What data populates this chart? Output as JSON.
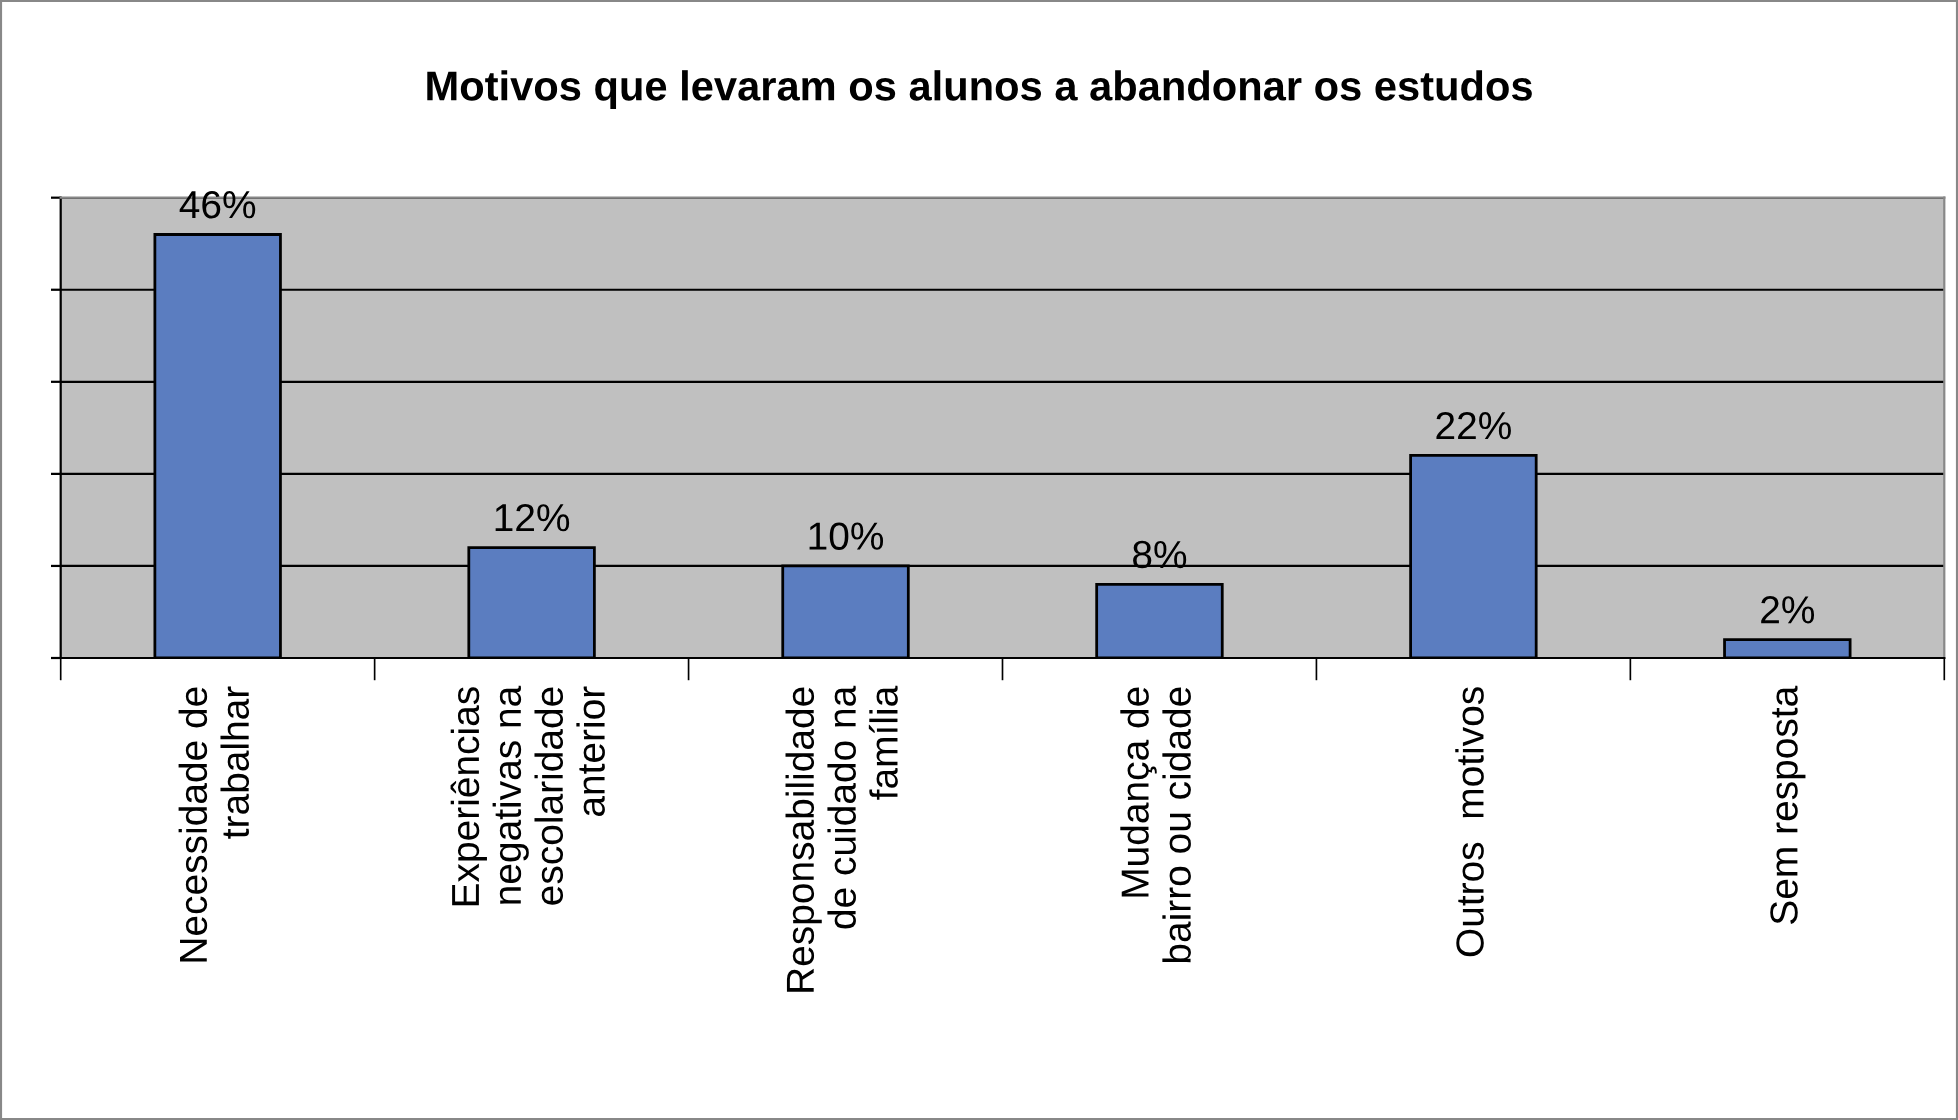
{
  "chart_data": {
    "type": "bar",
    "title": "Motivos que levaram os alunos a abandonar os estudos",
    "categories": [
      "Necessidade de\ntrabalhar",
      "Experiências\nnegativas na\nescolaridade\nanterior",
      "Responsabilidade\nde cuidado na\nfamília",
      "Mudança de\nbairro ou cidade",
      "Outros  motivos",
      "Sem resposta"
    ],
    "values": [
      46,
      12,
      10,
      8,
      22,
      2
    ],
    "value_labels": [
      "46%",
      "12%",
      "10%",
      "8%",
      "22%",
      "2%"
    ],
    "color": "#5b7dc0",
    "ylim": [
      0,
      50
    ],
    "yticks": [
      {
        "value": 0,
        "label": null
      },
      {
        "value": 10,
        "label": null
      },
      {
        "value": 20,
        "label": null
      },
      {
        "value": 30,
        "label": null
      },
      {
        "value": 40,
        "label": null
      },
      {
        "value": 50,
        "label": null
      }
    ],
    "tick_labels": "x",
    "grid": "y",
    "legend": false
  }
}
